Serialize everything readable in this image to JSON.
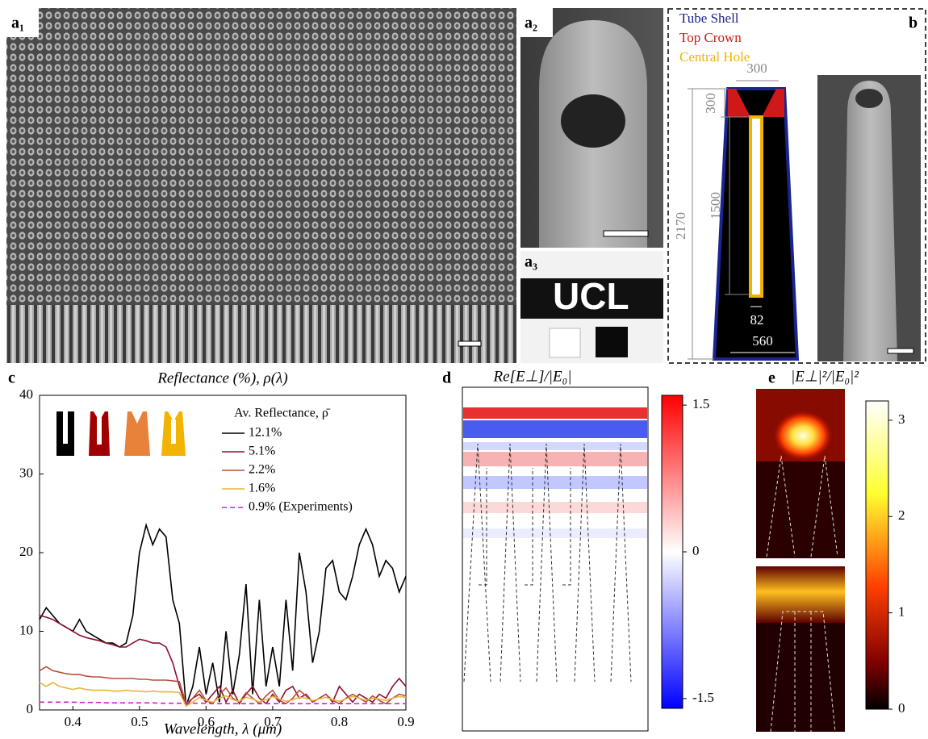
{
  "chart_data": {
    "type": "line",
    "panel_label": "c",
    "title": "Reflectance (%), ρ(λ)",
    "x_label": "Wavelength, λ (μm)",
    "legend_title": "Av. Reflectance, ρ̄",
    "x": [
      0.35,
      0.36,
      0.37,
      0.38,
      0.39,
      0.4,
      0.41,
      0.42,
      0.43,
      0.44,
      0.45,
      0.46,
      0.47,
      0.48,
      0.49,
      0.5,
      0.51,
      0.52,
      0.53,
      0.54,
      0.55,
      0.56,
      0.57,
      0.58,
      0.59,
      0.6,
      0.61,
      0.62,
      0.63,
      0.64,
      0.65,
      0.66,
      0.67,
      0.68,
      0.69,
      0.7,
      0.71,
      0.72,
      0.73,
      0.74,
      0.75,
      0.76,
      0.77,
      0.78,
      0.79,
      0.8,
      0.81,
      0.82,
      0.83,
      0.84,
      0.85,
      0.86,
      0.87,
      0.88,
      0.89,
      0.9
    ],
    "series": [
      {
        "name": "12.1%",
        "color": "#000000",
        "values": [
          11.5,
          13,
          12,
          11,
          10.5,
          10,
          11.5,
          10,
          9.5,
          9,
          8.5,
          8.5,
          8,
          8.5,
          12,
          20,
          23.5,
          21,
          23,
          22,
          14,
          11,
          0.5,
          3,
          8,
          2,
          6,
          1,
          10,
          2,
          7,
          16,
          2,
          14,
          3,
          8,
          3,
          14,
          5,
          20,
          15,
          6,
          10,
          18,
          19,
          15,
          14,
          17,
          21,
          23,
          21,
          17,
          19,
          18,
          15,
          17
        ]
      },
      {
        "name": "5.1%",
        "color": "#8b1030",
        "values": [
          12,
          11.8,
          11.5,
          11,
          10.5,
          10,
          9.5,
          9.2,
          9,
          8.8,
          8.5,
          8.3,
          8,
          8,
          8.5,
          9,
          8.8,
          8.5,
          8.5,
          8,
          6,
          3,
          0.5,
          1.5,
          2,
          1,
          2,
          3,
          1,
          2.5,
          0.8,
          2,
          3,
          1.5,
          0.8,
          2,
          1,
          2.5,
          3,
          1.5,
          2,
          1,
          1.5,
          2,
          1,
          3,
          2,
          1,
          2,
          1.5,
          1,
          2,
          1.5,
          3,
          4,
          3
        ]
      },
      {
        "name": "2.2%",
        "color": "#b5503a",
        "values": [
          5,
          5.5,
          5,
          4.8,
          4.6,
          4.5,
          4.5,
          4.3,
          4.2,
          4.2,
          4.1,
          4,
          4,
          4,
          4,
          3.9,
          3.9,
          3.8,
          3.8,
          3.8,
          3.7,
          3.6,
          0.8,
          1.5,
          2.5,
          1.2,
          0.8,
          2,
          2.8,
          1.5,
          1,
          2.2,
          1.5,
          0.8,
          1.8,
          2.5,
          1.2,
          0.8,
          1.5,
          2.5,
          1.8,
          1,
          1.5,
          2,
          1.2,
          0.8,
          1.5,
          2,
          1.5,
          1,
          1.8,
          1.2,
          0.8,
          1.5,
          2,
          1.8
        ]
      },
      {
        "name": "1.6%",
        "color": "#e8b440",
        "values": [
          3.5,
          3,
          3.5,
          3,
          2.8,
          2.6,
          2.8,
          2.6,
          2.5,
          2.5,
          2.5,
          2.4,
          2.4,
          2.5,
          2.4,
          2.4,
          2.3,
          2.4,
          2.3,
          2.3,
          2.3,
          2.2,
          0.5,
          1,
          1.6,
          1.2,
          1,
          1.5,
          1.8,
          1.3,
          1.1,
          1.6,
          1.4,
          1,
          1.3,
          1.7,
          1.4,
          1.1,
          1.3,
          1.6,
          1.5,
          1.2,
          1.4,
          1.6,
          1.3,
          1.1,
          1.4,
          1.7,
          1.5,
          1.2,
          1.5,
          1.4,
          1.2,
          1.5,
          1.7,
          1.6
        ]
      },
      {
        "name": "0.9% (Experiments)",
        "color": "#d020d0",
        "dashed": true,
        "values": [
          1,
          1,
          1,
          1,
          1,
          1,
          0.95,
          0.95,
          0.95,
          0.95,
          0.9,
          0.9,
          0.9,
          0.9,
          0.9,
          0.9,
          0.9,
          0.9,
          0.85,
          0.85,
          0.85,
          0.85,
          0.85,
          0.85,
          0.85,
          0.85,
          0.8,
          0.8,
          0.8,
          0.8,
          0.8,
          0.8,
          0.8,
          0.8,
          0.8,
          0.8,
          0.8,
          0.8,
          0.8,
          0.8,
          0.8,
          0.8,
          0.8,
          0.8,
          0.8,
          0.8,
          0.8,
          0.8,
          0.8,
          0.8,
          0.8,
          0.8,
          0.8,
          0.8,
          0.8,
          0.8
        ]
      }
    ],
    "xlim": [
      0.35,
      0.9
    ],
    "xticks": [
      0.4,
      0.5,
      0.6,
      0.7,
      0.8,
      0.9
    ],
    "ylim": [
      0,
      40
    ],
    "yticks": [
      0,
      10,
      20,
      30,
      40
    ]
  },
  "figure": {
    "panel_a1": {
      "label": "a₁"
    },
    "panel_a2": {
      "label": "a₂"
    },
    "panel_a3": {
      "label": "a₃",
      "sign_text": "UCL"
    },
    "panel_b": {
      "label": "b",
      "legend": [
        {
          "name": "Tube Shell",
          "color": "#1a2590"
        },
        {
          "name": "Top Crown",
          "color": "#d01818"
        },
        {
          "name": "Central Hole",
          "color": "#f0b400"
        }
      ],
      "dimensions": {
        "top_width": 300,
        "crown_height": 300,
        "hole_depth": 1500,
        "total_height": 2170,
        "hole_width": 82,
        "base_width": 560
      }
    },
    "panel_d": {
      "label": "d",
      "title": "Re[E⊥]/|E₀|",
      "colorbar": {
        "lim": [
          -1.6,
          1.6
        ],
        "ticks": [
          1.5,
          0,
          -1.5
        ]
      }
    },
    "panel_e": {
      "label": "e",
      "title": "|E⊥|²/|E₀|²",
      "colorbar": {
        "lim": [
          0,
          3.2
        ],
        "ticks": [
          3,
          2,
          1,
          0
        ]
      }
    }
  }
}
